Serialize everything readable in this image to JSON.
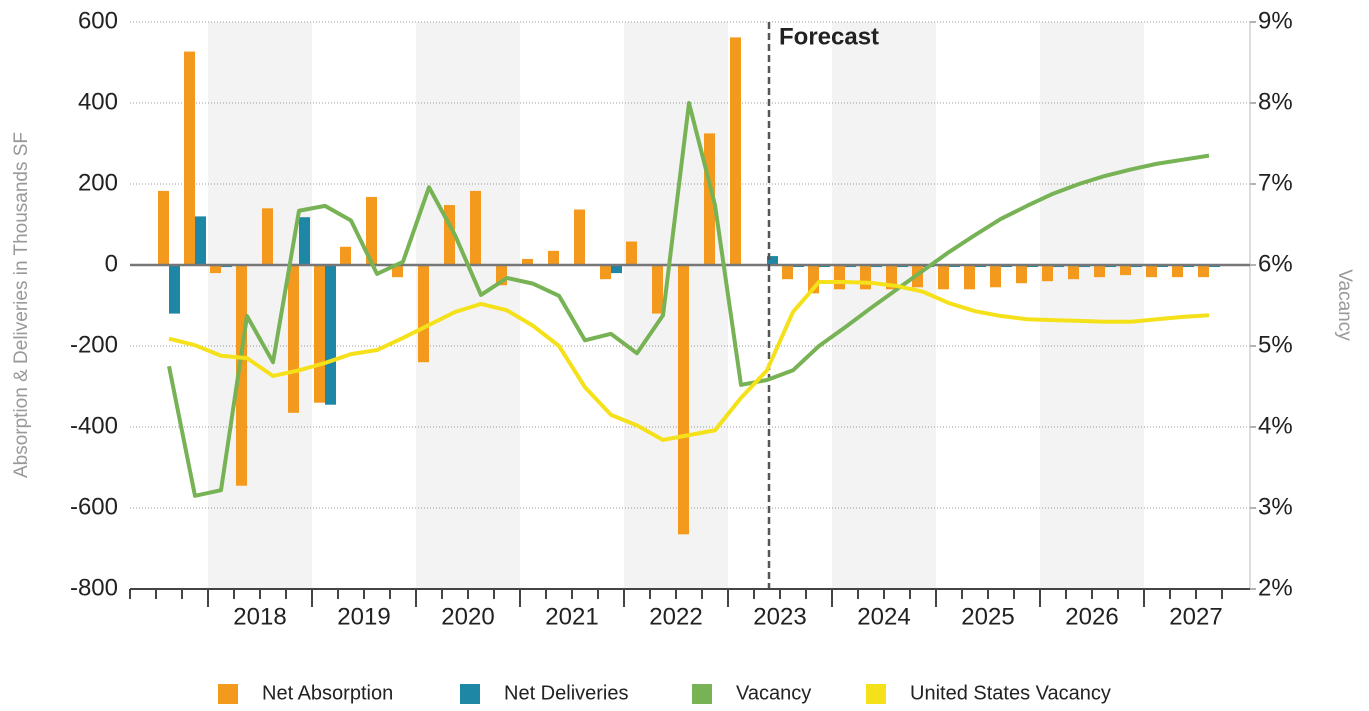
{
  "chart_data": {
    "type": "bar-line",
    "y_label": "Absorption & Deliveries in Thousands SF",
    "y2_label": "Vacancy",
    "annotation": "Forecast",
    "year_labels": [
      "2018",
      "2019",
      "2020",
      "2021",
      "2022",
      "2023",
      "2024",
      "2025",
      "2026",
      "2027"
    ],
    "categories": [
      null,
      null,
      null,
      null,
      null,
      null,
      null,
      null,
      null,
      null,
      null,
      null,
      null,
      null,
      null,
      null,
      null,
      null,
      null,
      null,
      null,
      null,
      null,
      null,
      null,
      null,
      null,
      null,
      null,
      null,
      null,
      null,
      null,
      null,
      null,
      null,
      null,
      null,
      null,
      null,
      null
    ],
    "ylim": [
      -800,
      600
    ],
    "yticks": [
      -800,
      -600,
      -400,
      -200,
      0,
      200,
      400,
      600
    ],
    "y2lim": [
      2,
      9
    ],
    "y2ticks": [
      {
        "value": 2,
        "label": "2%"
      },
      {
        "value": 3,
        "label": "3%"
      },
      {
        "value": 4,
        "label": "4%"
      },
      {
        "value": 5,
        "label": "5%"
      },
      {
        "value": 6,
        "label": "6%"
      },
      {
        "value": 7,
        "label": "7%"
      },
      {
        "value": 8,
        "label": "8%"
      },
      {
        "value": 9,
        "label": "9%"
      }
    ],
    "grid": true,
    "series": [
      {
        "name": "Net Absorption",
        "type": "bar",
        "color": "#f39a1e",
        "values": [
          183,
          527,
          -20,
          -545,
          140,
          -365,
          -340,
          45,
          168,
          -30,
          -240,
          148,
          183,
          -50,
          15,
          35,
          137,
          -35,
          58,
          -120,
          -665,
          325,
          562,
          0,
          -35,
          -70,
          -60,
          -60,
          -60,
          -55,
          -60,
          -60,
          -55,
          -45,
          -40,
          -35,
          -30,
          -25,
          -30,
          -30,
          -30
        ]
      },
      {
        "name": "Net Deliveries",
        "type": "bar",
        "color": "#1f87a6",
        "values": [
          -120,
          120,
          -5,
          0,
          0,
          118,
          -345,
          0,
          0,
          0,
          0,
          0,
          0,
          0,
          0,
          0,
          0,
          -20,
          0,
          0,
          0,
          0,
          0,
          22,
          -5,
          -5,
          -5,
          -5,
          -5,
          -5,
          -5,
          -5,
          -5,
          -5,
          -5,
          -5,
          -5,
          -5,
          -5,
          -5,
          -5
        ]
      },
      {
        "name": "Vacancy",
        "type": "line",
        "axis": "y2",
        "color": "#77b255",
        "values": [
          4.75,
          3.15,
          3.22,
          5.37,
          4.8,
          6.67,
          6.73,
          6.55,
          5.89,
          6.04,
          6.96,
          6.37,
          5.63,
          5.84,
          5.77,
          5.62,
          5.07,
          5.15,
          4.91,
          5.38,
          8.0,
          6.74,
          4.52,
          4.58,
          4.7,
          5.0,
          5.23,
          5.47,
          5.7,
          5.93,
          6.16,
          6.37,
          6.57,
          6.73,
          6.88,
          7.0,
          7.1,
          7.18,
          7.25,
          7.3,
          7.35
        ]
      },
      {
        "name": "United States Vacancy",
        "type": "line",
        "axis": "y2",
        "color": "#f5e11a",
        "values": [
          5.09,
          5.01,
          4.88,
          4.85,
          4.63,
          4.7,
          4.79,
          4.9,
          4.95,
          5.1,
          5.26,
          5.42,
          5.52,
          5.44,
          5.25,
          5.0,
          4.49,
          4.15,
          4.02,
          3.84,
          3.9,
          3.96,
          4.36,
          4.7,
          5.42,
          5.79,
          5.79,
          5.78,
          5.74,
          5.67,
          5.53,
          5.43,
          5.37,
          5.33,
          5.32,
          5.31,
          5.3,
          5.3,
          5.33,
          5.36,
          5.38
        ]
      }
    ]
  }
}
